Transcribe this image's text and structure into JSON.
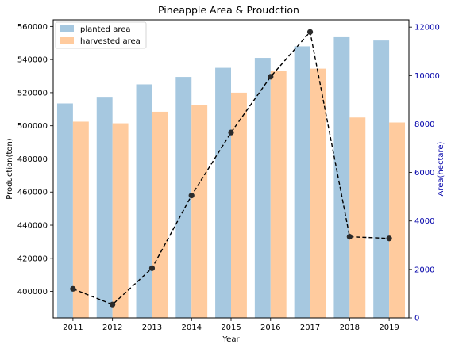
{
  "chart_data": {
    "type": "bar",
    "title": "Pineapple Area & Proudction",
    "xlabel": "Year",
    "ylabel": "Production(ton)",
    "y2label": "Area(hectare)",
    "categories": [
      "2011",
      "2012",
      "2013",
      "2014",
      "2015",
      "2016",
      "2017",
      "2018",
      "2019"
    ],
    "ylim": [
      384000,
      564000
    ],
    "yticks": [
      400000,
      420000,
      440000,
      460000,
      480000,
      500000,
      520000,
      540000,
      560000
    ],
    "y2lim": [
      0,
      12300
    ],
    "y2ticks": [
      0,
      2000,
      4000,
      6000,
      8000,
      10000,
      12000
    ],
    "legend_position": "upper-left",
    "grid": false,
    "series": [
      {
        "name": "planted area",
        "axis": "left",
        "kind": "bar",
        "color": "#a6c8e0",
        "values": [
          513500,
          517500,
          525000,
          529500,
          535000,
          541000,
          548000,
          553500,
          551500
        ]
      },
      {
        "name": "harvested area",
        "axis": "left",
        "kind": "bar",
        "color": "#ffcb9e",
        "values": [
          502500,
          501500,
          508500,
          512500,
          520000,
          533000,
          534500,
          505000,
          502000
        ]
      },
      {
        "axis": "right",
        "kind": "line",
        "style": "dashed",
        "marker": "circle",
        "color": "#000000",
        "values": [
          1200,
          550,
          2050,
          5050,
          7650,
          9950,
          11800,
          3350,
          3280
        ]
      }
    ],
    "colors": {
      "right_axis": "#0000aa",
      "line": "#000000",
      "marker": "#2b2b2b"
    }
  }
}
